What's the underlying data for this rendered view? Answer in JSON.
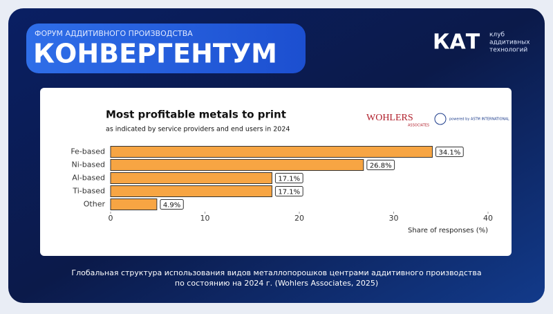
{
  "header": {
    "kicker": "ФОРУМ АДДИТИВНОГО ПРОИЗВОДСТВА",
    "title": "КОНВЕРГЕНТУМ"
  },
  "logo": {
    "mark": "КАТ",
    "lines": [
      "клуб",
      "аддитивных",
      "технологий"
    ]
  },
  "partners": {
    "wohlers": "WOHLERS",
    "wohlers_sub": "ASSOCIATES",
    "astm": "powered by ASTM INTERNATIONAL"
  },
  "chart_data": {
    "type": "hbar",
    "title": "Most profitable metals to print",
    "subtitle": "as indicated by service providers and end users in 2024",
    "categories": [
      "Fe-based",
      "Ni-based",
      "Al-based",
      "Ti-based",
      "Other"
    ],
    "values": [
      34.1,
      26.8,
      17.1,
      17.1,
      4.9
    ],
    "value_labels": [
      "34.1%",
      "26.8%",
      "17.1%",
      "17.1%",
      "4.9%"
    ],
    "color": "#f7a543",
    "xlim": [
      0,
      40
    ],
    "xticks": [
      0,
      10,
      20,
      30,
      40
    ],
    "x_label": "Share of responses (%)"
  },
  "caption": [
    "Глобальная структура использования видов металлопорошков центрами аддитивного производства",
    "по состоянию на 2024 г. (Wohlers Associates, 2025)"
  ]
}
